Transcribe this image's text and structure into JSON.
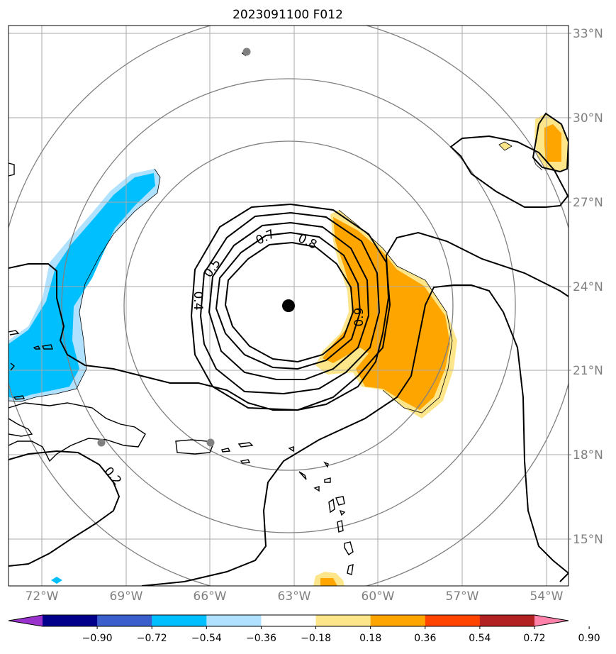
{
  "title": "2023091100 F012",
  "lat_labels": [
    "33°N",
    "30°N",
    "27°N",
    "24°N",
    "21°N",
    "18°N",
    "15°N"
  ],
  "lon_labels": [
    "72°W",
    "69°W",
    "66°W",
    "63°W",
    "60°W",
    "57°W",
    "54°W"
  ],
  "contour_labels": [
    "0.5",
    "0.7",
    "0.8",
    "0.4",
    "0.9",
    "0.2"
  ],
  "colorbar": {
    "ticks": [
      "−0.90",
      "−0.72",
      "−0.54",
      "−0.36",
      "−0.18",
      "0.18",
      "0.36",
      "0.54",
      "0.72",
      "0.90"
    ],
    "colors": [
      "#9932cc",
      "#00008b",
      "#3a5fcd",
      "#00bfff",
      "#b0e2ff",
      "#ffffff",
      "#fde68a",
      "#ffa500",
      "#ff4500",
      "#b22222",
      "#ff82ab"
    ]
  },
  "colors": {
    "positive_light": "#fde68a",
    "positive": "#ffa500",
    "negative_light": "#b0e2ff",
    "negative": "#00bfff",
    "grid": "#aaaaaa",
    "range_ring": "#808080",
    "center_dot": "#000000",
    "station_dot": "#808080"
  }
}
